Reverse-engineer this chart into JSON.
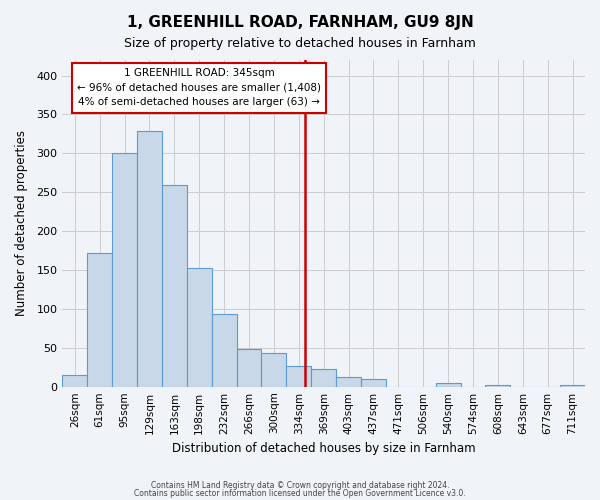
{
  "title": "1, GREENHILL ROAD, FARNHAM, GU9 8JN",
  "subtitle": "Size of property relative to detached houses in Farnham",
  "xlabel": "Distribution of detached houses by size in Farnham",
  "ylabel": "Number of detached properties",
  "footer_line1": "Contains HM Land Registry data © Crown copyright and database right 2024.",
  "footer_line2": "Contains public sector information licensed under the Open Government Licence v3.0.",
  "bin_labels": [
    "26sqm",
    "61sqm",
    "95sqm",
    "129sqm",
    "163sqm",
    "198sqm",
    "232sqm",
    "266sqm",
    "300sqm",
    "334sqm",
    "369sqm",
    "403sqm",
    "437sqm",
    "471sqm",
    "506sqm",
    "540sqm",
    "574sqm",
    "608sqm",
    "643sqm",
    "677sqm",
    "711sqm"
  ],
  "bar_values": [
    15,
    172,
    301,
    329,
    259,
    152,
    93,
    48,
    43,
    26,
    23,
    12,
    10,
    0,
    0,
    5,
    0,
    2,
    0,
    0,
    2
  ],
  "bar_color": "#c8d8e8",
  "bar_edge_color": "#5b9bd5",
  "vline_x": 9.27,
  "vline_color": "#cc0000",
  "annotation_title": "1 GREENHILL ROAD: 345sqm",
  "annotation_line1": "← 96% of detached houses are smaller (1,408)",
  "annotation_line2": "4% of semi-detached houses are larger (63) →",
  "annotation_box_color": "#ffffff",
  "annotation_box_edge": "#cc0000",
  "ylim": [
    0,
    420
  ],
  "yticks": [
    0,
    50,
    100,
    150,
    200,
    250,
    300,
    350,
    400
  ],
  "background_color": "#f0f4f8",
  "grid_color": "#cccccc"
}
